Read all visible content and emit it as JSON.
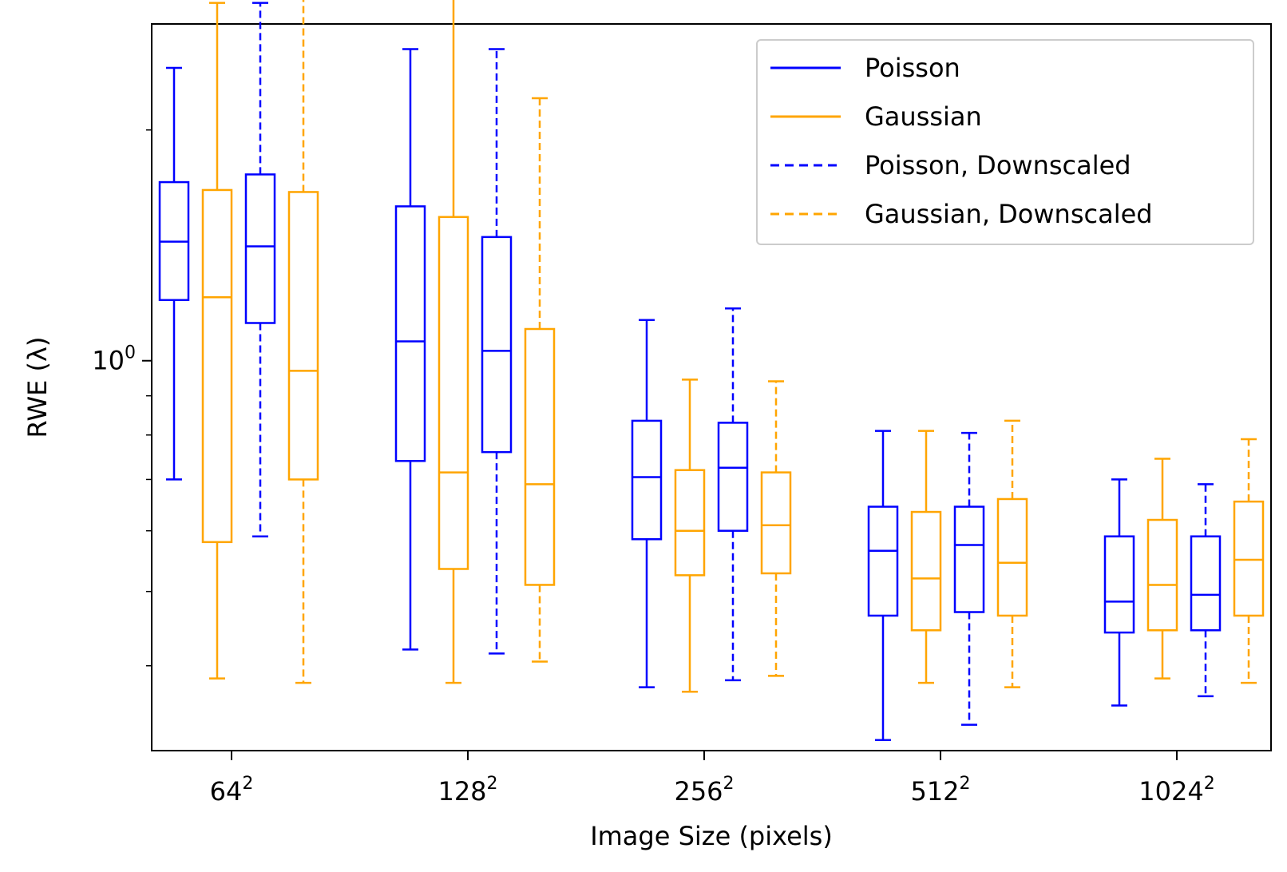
{
  "chart_data": {
    "type": "boxplot",
    "xlabel": "Image Size (pixels)",
    "ylabel": "RWE (λ)",
    "yscale": "log",
    "ylim": [
      0.31,
      2.75
    ],
    "y_tick_label": {
      "base": "10",
      "exp": "0",
      "value": 1.0
    },
    "categories": [
      {
        "base": "64",
        "exp": "2"
      },
      {
        "base": "128",
        "exp": "2"
      },
      {
        "base": "256",
        "exp": "2"
      },
      {
        "base": "512",
        "exp": "2"
      },
      {
        "base": "1024",
        "exp": "2"
      }
    ],
    "legend_position": "top-right",
    "series": [
      {
        "name": "Poisson",
        "color": "#0000ff",
        "linestyle": "solid",
        "boxes": [
          {
            "whislo": 0.7,
            "q1": 1.2,
            "med": 1.43,
            "q3": 1.71,
            "whishi": 2.41
          },
          {
            "whislo": 0.42,
            "q1": 0.74,
            "med": 1.06,
            "q3": 1.59,
            "whishi": 2.55
          },
          {
            "whislo": 0.375,
            "q1": 0.585,
            "med": 0.705,
            "q3": 0.835,
            "whishi": 1.13
          },
          {
            "whislo": 0.32,
            "q1": 0.465,
            "med": 0.565,
            "q3": 0.645,
            "whishi": 0.81
          },
          {
            "whislo": 0.355,
            "q1": 0.442,
            "med": 0.485,
            "q3": 0.59,
            "whishi": 0.7
          }
        ]
      },
      {
        "name": "Gaussian",
        "color": "#ffa500",
        "linestyle": "solid",
        "boxes": [
          {
            "whislo": 0.385,
            "q1": 0.58,
            "med": 1.21,
            "q3": 1.67,
            "whishi": 2.93
          },
          {
            "whislo": 0.38,
            "q1": 0.535,
            "med": 0.715,
            "q3": 1.54,
            "whishi": 3.18
          },
          {
            "whislo": 0.37,
            "q1": 0.525,
            "med": 0.6,
            "q3": 0.72,
            "whishi": 0.945
          },
          {
            "whislo": 0.38,
            "q1": 0.445,
            "med": 0.52,
            "q3": 0.635,
            "whishi": 0.81
          },
          {
            "whislo": 0.385,
            "q1": 0.445,
            "med": 0.51,
            "q3": 0.62,
            "whishi": 0.745
          }
        ]
      },
      {
        "name": "Poisson, Downscaled",
        "color": "#0000ff",
        "linestyle": "dashed",
        "boxes": [
          {
            "whislo": 0.59,
            "q1": 1.12,
            "med": 1.41,
            "q3": 1.75,
            "whishi": 2.93
          },
          {
            "whislo": 0.415,
            "q1": 0.76,
            "med": 1.03,
            "q3": 1.45,
            "whishi": 2.55
          },
          {
            "whislo": 0.383,
            "q1": 0.6,
            "med": 0.725,
            "q3": 0.83,
            "whishi": 1.17
          },
          {
            "whislo": 0.335,
            "q1": 0.47,
            "med": 0.575,
            "q3": 0.645,
            "whishi": 0.805
          },
          {
            "whislo": 0.365,
            "q1": 0.445,
            "med": 0.495,
            "q3": 0.59,
            "whishi": 0.69
          }
        ]
      },
      {
        "name": "Gaussian, Downscaled",
        "color": "#ffa500",
        "linestyle": "dashed",
        "boxes": [
          {
            "whislo": 0.38,
            "q1": 0.7,
            "med": 0.97,
            "q3": 1.66,
            "whishi": 2.98
          },
          {
            "whislo": 0.405,
            "q1": 0.51,
            "med": 0.69,
            "q3": 1.1,
            "whishi": 2.2
          },
          {
            "whislo": 0.388,
            "q1": 0.528,
            "med": 0.61,
            "q3": 0.715,
            "whishi": 0.94
          },
          {
            "whislo": 0.375,
            "q1": 0.465,
            "med": 0.545,
            "q3": 0.66,
            "whishi": 0.835
          },
          {
            "whislo": 0.38,
            "q1": 0.465,
            "med": 0.55,
            "q3": 0.655,
            "whishi": 0.79
          }
        ]
      }
    ]
  }
}
